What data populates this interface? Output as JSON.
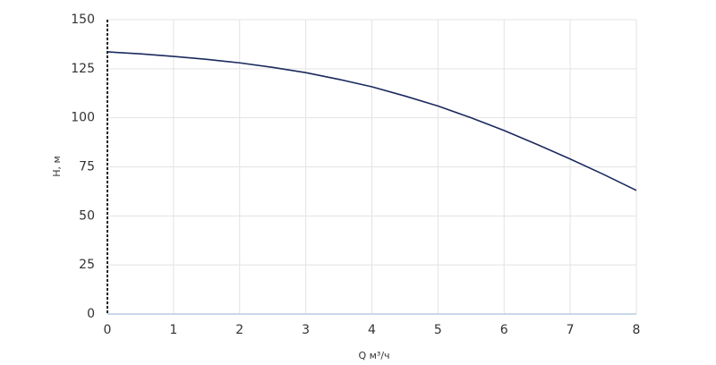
{
  "chart_data": {
    "type": "line",
    "x_label": "Q м³/ч",
    "y_label": "H, м",
    "x": [
      0,
      0.5,
      1,
      1.5,
      2,
      2.5,
      3,
      3.5,
      4,
      4.5,
      5,
      5.5,
      6,
      6.5,
      7,
      7.5,
      8
    ],
    "series": [
      {
        "name": "H",
        "color": "#1b2a5e",
        "values": [
          133.6,
          132.6,
          131.3,
          129.8,
          128,
          125.7,
          123,
          119.6,
          115.8,
          111.1,
          106,
          100,
          93.5,
          86.4,
          79,
          71.2,
          63
        ]
      }
    ],
    "xlim": [
      0,
      8
    ],
    "xticks": [
      0,
      1,
      2,
      3,
      4,
      5,
      6,
      7,
      8
    ],
    "ylim": [
      0,
      150
    ],
    "yticks": [
      0,
      25,
      50,
      75,
      100,
      125,
      150
    ],
    "grid": true
  }
}
